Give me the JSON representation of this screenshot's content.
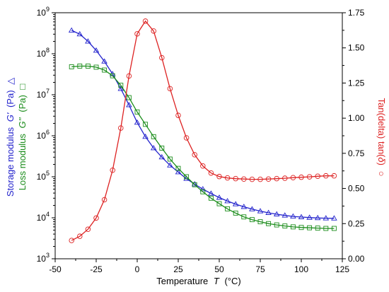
{
  "chart_data": {
    "type": "line",
    "x_axis": {
      "label": "Temperature",
      "symbol": "T",
      "unit": "(°C)",
      "range": [
        -50,
        125
      ],
      "ticks": [
        -50,
        -25,
        0,
        25,
        50,
        75,
        100,
        125
      ]
    },
    "y_left": {
      "scale": "log",
      "range": [
        1000,
        1000000000
      ],
      "ticks": [
        {
          "base": "10",
          "exp": "3",
          "value": 1000
        },
        {
          "base": "10",
          "exp": "4",
          "value": 10000
        },
        {
          "base": "10",
          "exp": "5",
          "value": 100000
        },
        {
          "base": "10",
          "exp": "6",
          "value": 1000000
        },
        {
          "base": "10",
          "exp": "7",
          "value": 10000000
        },
        {
          "base": "10",
          "exp": "8",
          "value": 100000000
        },
        {
          "base": "10",
          "exp": "9",
          "value": 1000000000
        }
      ],
      "label_storage": {
        "text": "Storage modulus",
        "symbol": "G'",
        "unit": "(Pa)",
        "marker": "△"
      },
      "label_loss": {
        "text": "Loss modulus",
        "symbol": "G''",
        "unit": "(Pa)",
        "marker": "□"
      }
    },
    "y_right": {
      "scale": "linear",
      "range": [
        0.0,
        1.75
      ],
      "ticks": [
        "0.00",
        "0.25",
        "0.50",
        "0.75",
        "1.00",
        "1.25",
        "1.50",
        "1.75"
      ],
      "label": {
        "text": "Tan(delta) tan(",
        "symbol": "δ",
        "close": ")",
        "marker": "○"
      }
    },
    "series": [
      {
        "name": "Storage modulus G'",
        "axis": "left",
        "color": "#2222cc",
        "marker": "triangle",
        "x": [
          -40,
          -35,
          -30,
          -25,
          -20,
          -15,
          -10,
          -5,
          0,
          5,
          10,
          15,
          20,
          25,
          30,
          35,
          40,
          45,
          50,
          55,
          60,
          65,
          70,
          75,
          80,
          85,
          90,
          95,
          100,
          105,
          110,
          115,
          120
        ],
        "y": [
          370000000.0,
          300000000.0,
          200000000.0,
          120000000.0,
          65000000.0,
          32000000.0,
          14000000.0,
          5600000.0,
          2100000.0,
          950000.0,
          500000.0,
          300000.0,
          190000.0,
          130000.0,
          90000.0,
          66000.0,
          50000.0,
          39000.0,
          31000.0,
          25500.0,
          21500.0,
          18500.0,
          16200.0,
          14500.0,
          13200.0,
          12200.0,
          11400.0,
          10800.0,
          10400.0,
          10100.0,
          9900.0,
          9750.0,
          9700.0
        ]
      },
      {
        "name": "Loss modulus G''",
        "axis": "left",
        "color": "#1a8c1a",
        "marker": "square",
        "x": [
          -40,
          -35,
          -30,
          -25,
          -20,
          -15,
          -10,
          -5,
          0,
          5,
          10,
          15,
          20,
          25,
          30,
          35,
          40,
          45,
          50,
          55,
          60,
          65,
          70,
          75,
          80,
          85,
          90,
          95,
          100,
          105,
          110,
          115,
          120
        ],
        "y": [
          48000000.0,
          50000000.0,
          50000000.0,
          47000000.0,
          40000000.0,
          29000000.0,
          17000000.0,
          8500000.0,
          3800000.0,
          1900000.0,
          950000.0,
          500000.0,
          270000.0,
          160000.0,
          100000.0,
          64000.0,
          43000.0,
          30000.0,
          22000.0,
          16500.0,
          13000.0,
          10500.0,
          9000.0,
          8000.0,
          7200.0,
          6700.0,
          6300.0,
          6000.0,
          5800.0,
          5700.0,
          5600.0,
          5500.0,
          5500.0
        ]
      },
      {
        "name": "Tan(delta) tan(δ)",
        "axis": "right",
        "color": "#dd2222",
        "marker": "circle",
        "x": [
          -40,
          -35,
          -30,
          -25,
          -20,
          -15,
          -10,
          -5,
          0,
          5,
          10,
          15,
          20,
          25,
          30,
          35,
          40,
          45,
          50,
          55,
          60,
          65,
          70,
          75,
          80,
          85,
          90,
          95,
          100,
          105,
          110,
          115,
          120
        ],
        "y": [
          0.13,
          0.16,
          0.21,
          0.29,
          0.42,
          0.63,
          0.93,
          1.3,
          1.6,
          1.69,
          1.62,
          1.43,
          1.21,
          1.02,
          0.86,
          0.74,
          0.66,
          0.61,
          0.585,
          0.575,
          0.57,
          0.567,
          0.565,
          0.565,
          0.567,
          0.57,
          0.573,
          0.577,
          0.58,
          0.583,
          0.587,
          0.59,
          0.59
        ]
      }
    ],
    "grid": false
  }
}
